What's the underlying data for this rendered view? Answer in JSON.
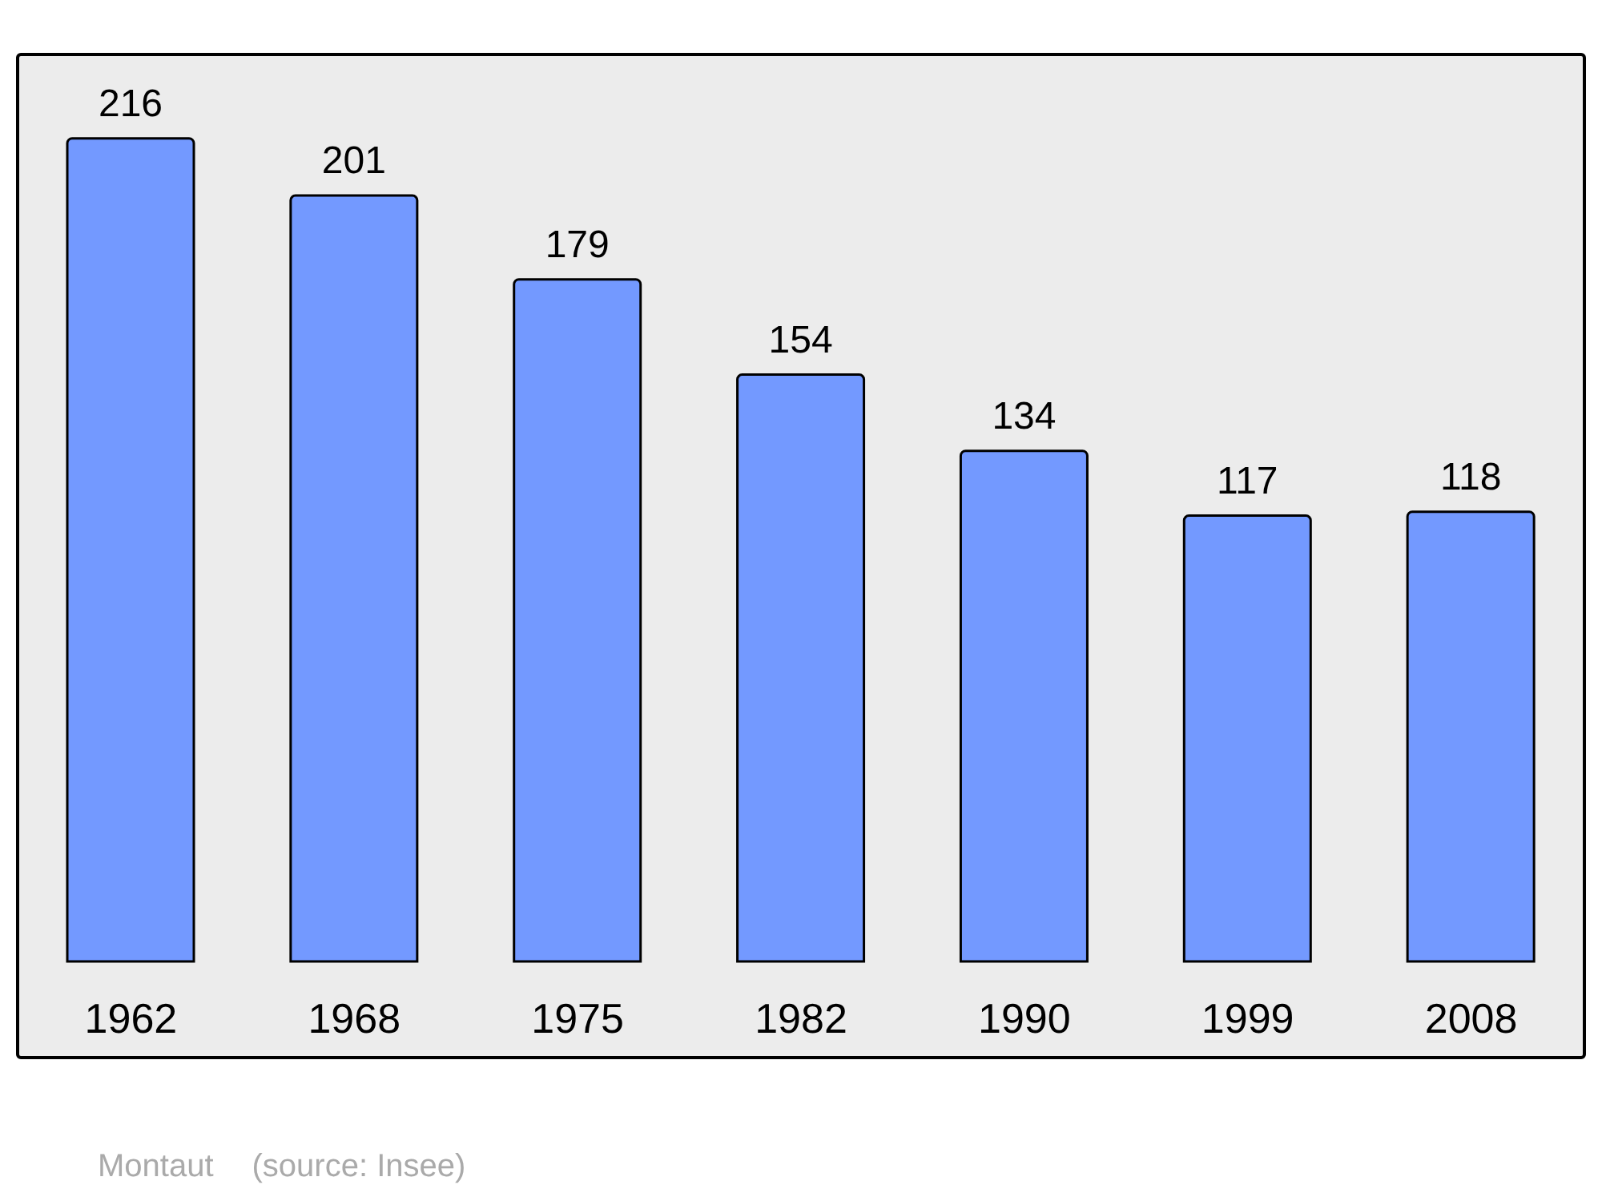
{
  "chart_data": {
    "type": "bar",
    "categories": [
      "1962",
      "1968",
      "1975",
      "1982",
      "1990",
      "1999",
      "2008"
    ],
    "values": [
      216,
      201,
      179,
      154,
      134,
      117,
      118
    ],
    "color": "#7399ff",
    "data_labels": true,
    "annotations": [
      "Montaut",
      "(source: Insee)"
    ]
  }
}
